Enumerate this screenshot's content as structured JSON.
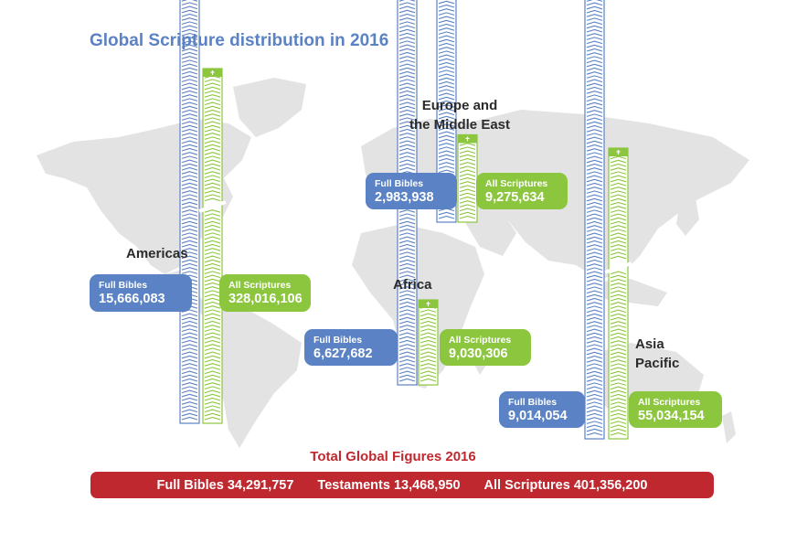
{
  "title": "Global Scripture distribution in 2016",
  "chart_data": {
    "type": "bar",
    "title": "Global Scripture distribution in 2016",
    "categories": [
      "Americas",
      "Europe and the Middle East",
      "Africa",
      "Asia Pacific"
    ],
    "series": [
      {
        "name": "Full Bibles",
        "values": [
          15666083,
          2983938,
          6627682,
          9014054
        ]
      },
      {
        "name": "All Scriptures",
        "values": [
          328016106,
          9275634,
          9030306,
          55034154
        ]
      }
    ],
    "regions": [
      {
        "id": "americas",
        "label": "Americas",
        "full_bibles_label": "Full Bibles",
        "full_bibles": "15,666,083",
        "all_scriptures_label": "All Scriptures",
        "all_scriptures": "328,016,106"
      },
      {
        "id": "europe",
        "label_line1": "Europe and",
        "label_line2": "the Middle East",
        "full_bibles_label": "Full Bibles",
        "full_bibles": "2,983,938",
        "all_scriptures_label": "All Scriptures",
        "all_scriptures": "9,275,634"
      },
      {
        "id": "africa",
        "label": "Africa",
        "full_bibles_label": "Full Bibles",
        "full_bibles": "6,627,682",
        "all_scriptures_label": "All Scriptures",
        "all_scriptures": "9,030,306"
      },
      {
        "id": "asia",
        "label_line1": "Asia",
        "label_line2": "Pacific",
        "full_bibles_label": "Full Bibles",
        "full_bibles": "9,014,054",
        "all_scriptures_label": "All Scriptures",
        "all_scriptures": "55,034,154"
      }
    ],
    "totals": {
      "title": "Total Global Figures 2016",
      "full_bibles": "Full Bibles 34,291,757",
      "testaments": "Testaments 13,468,950",
      "all_scriptures": "All Scriptures 401,356,200"
    },
    "colors": {
      "full_bibles": "#5b82c4",
      "all_scriptures": "#8cc63f",
      "totals": "#c0282f",
      "map": "#e3e3e3",
      "title": "#5b82c4"
    }
  }
}
